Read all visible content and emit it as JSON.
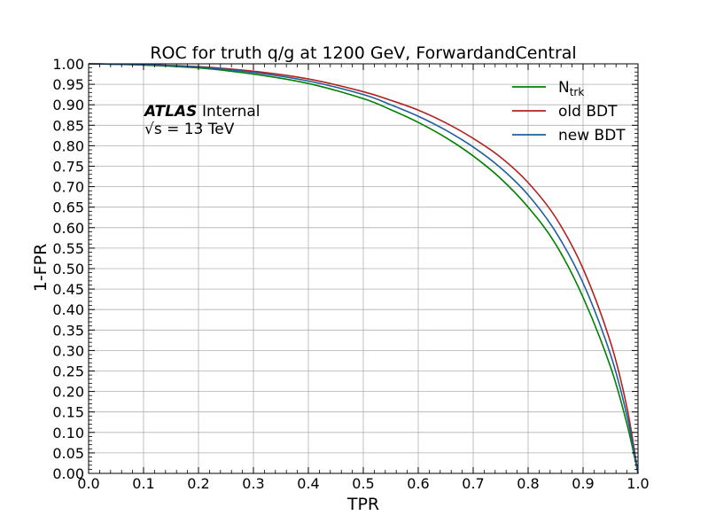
{
  "chart_data": {
    "type": "line",
    "title": "ROC for truth q/g at 1200 GeV, ForwardandCentral",
    "xlabel": "TPR",
    "ylabel": "1-FPR",
    "xlim": [
      0.0,
      1.0
    ],
    "ylim": [
      0.0,
      1.0
    ],
    "grid": true,
    "legend_position": "top-right",
    "x_ticks": [
      "0.0",
      "0.1",
      "0.2",
      "0.3",
      "0.4",
      "0.5",
      "0.6",
      "0.7",
      "0.8",
      "0.9",
      "1.0"
    ],
    "y_ticks": [
      "0.00",
      "0.05",
      "0.10",
      "0.15",
      "0.20",
      "0.25",
      "0.30",
      "0.35",
      "0.40",
      "0.45",
      "0.50",
      "0.55",
      "0.60",
      "0.65",
      "0.70",
      "0.75",
      "0.80",
      "0.85",
      "0.90",
      "0.95",
      "1.00"
    ],
    "annotation": {
      "experiment": "ATLAS",
      "status": "Internal",
      "energy": "√s = 13 TeV"
    },
    "series": [
      {
        "name_main": "N",
        "name_sub": "trk",
        "color": "#008000",
        "x": [
          0.0,
          0.1,
          0.2,
          0.3,
          0.4,
          0.5,
          0.55,
          0.6,
          0.65,
          0.7,
          0.75,
          0.8,
          0.85,
          0.9,
          0.95,
          0.98,
          1.0
        ],
        "y": [
          1.0,
          0.997,
          0.99,
          0.975,
          0.952,
          0.915,
          0.888,
          0.857,
          0.82,
          0.775,
          0.72,
          0.65,
          0.56,
          0.43,
          0.26,
          0.12,
          0.0
        ]
      },
      {
        "name_main": "old BDT",
        "name_sub": "",
        "color": "#b22222",
        "x": [
          0.0,
          0.1,
          0.2,
          0.3,
          0.4,
          0.5,
          0.55,
          0.6,
          0.65,
          0.7,
          0.75,
          0.8,
          0.85,
          0.9,
          0.95,
          0.98,
          1.0
        ],
        "y": [
          1.0,
          0.998,
          0.993,
          0.982,
          0.963,
          0.932,
          0.911,
          0.887,
          0.856,
          0.818,
          0.772,
          0.71,
          0.625,
          0.5,
          0.32,
          0.16,
          0.0
        ]
      },
      {
        "name_main": "new BDT",
        "name_sub": "",
        "color": "#1f5f9f",
        "x": [
          0.0,
          0.1,
          0.2,
          0.3,
          0.4,
          0.5,
          0.55,
          0.6,
          0.65,
          0.7,
          0.75,
          0.8,
          0.85,
          0.9,
          0.95,
          0.98,
          1.0
        ],
        "y": [
          1.0,
          0.998,
          0.992,
          0.979,
          0.958,
          0.925,
          0.9,
          0.872,
          0.838,
          0.797,
          0.746,
          0.68,
          0.59,
          0.465,
          0.29,
          0.14,
          0.0
        ]
      }
    ]
  }
}
